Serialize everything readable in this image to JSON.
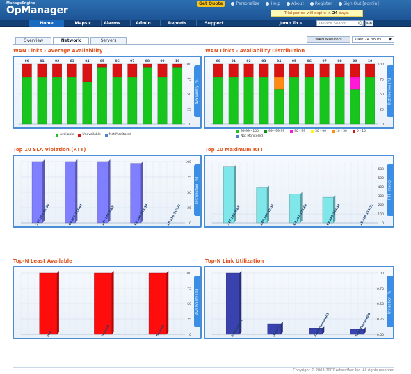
{
  "header": {
    "vendor": "ManageEngine",
    "product": "OpManager",
    "get_quote": "Get Quote",
    "links": [
      "Personalize",
      "Help",
      "About",
      "Register",
      "Sign Out [admin]"
    ],
    "trial_prefix": "Trial period will expire in",
    "trial_days": "24",
    "trial_suffix": "days."
  },
  "nav": {
    "items": [
      "Home",
      "Maps",
      "Alarms",
      "Admin",
      "Reports",
      "Support"
    ],
    "active": "Home",
    "jump_to": "Jump To",
    "search_placeholder": "Device Search...",
    "go": "Go"
  },
  "tabs": [
    "Overview",
    "Network",
    "Servers"
  ],
  "active_tab": "Network",
  "toolbar": {
    "wan_monitors": "WAN Monitors",
    "time_range": "Last 24 hours"
  },
  "colors": {
    "green": "#17c51d",
    "red": "#d91313",
    "orange": "#ff8b12",
    "magenta": "#ff18d6",
    "yellow": "#fff020",
    "purple": "#7f7fff",
    "cyan": "#7fe6ea",
    "navy": "#3a42b0",
    "blue_link": "#4a7fd4",
    "title": "#e05420"
  },
  "panels": {
    "wan_avg": {
      "title": "WAN Links - Average Availability",
      "axis_label": "Availability (%)",
      "legend": [
        "Available",
        "Unavailable",
        "Not Monitored"
      ]
    },
    "wan_dist": {
      "title": "WAN Links - Availability Distribution",
      "axis_label": "Distribution (%)",
      "legend": [
        "99.99 - 100",
        "99 - 99.99",
        "90 - 99",
        "50 - 90",
        "10 - 50",
        "0 - 10",
        "Not Monitored"
      ]
    },
    "sla": {
      "title": "Top 10 SLA Violation (RTT)",
      "axis_label": "Distribution (%)"
    },
    "max_rtt": {
      "title": "Top 10 Maximum RTT",
      "axis_label": "RTT (msec)"
    },
    "least_avail": {
      "title": "Top-N Least Available",
      "axis_label": "Availability (%)"
    },
    "link_util": {
      "title": "Top-N Link Utilization",
      "axis_label": "Utilization (%)"
    }
  },
  "chart_data": [
    {
      "id": "wan_avg",
      "type": "bar",
      "stacked": true,
      "categories": [
        "00",
        "01",
        "02",
        "03",
        "04",
        "05",
        "06",
        "07",
        "08",
        "09",
        "10"
      ],
      "series": [
        {
          "name": "Available",
          "color": "#17c51d",
          "values": [
            78,
            78,
            78,
            78,
            70,
            95,
            78,
            78,
            95,
            78,
            95
          ]
        },
        {
          "name": "Unavailable",
          "color": "#d91313",
          "values": [
            22,
            22,
            22,
            22,
            30,
            5,
            22,
            22,
            5,
            22,
            5
          ]
        }
      ],
      "yticks": [
        0,
        25,
        50,
        75,
        100
      ],
      "ylim": [
        0,
        100
      ]
    },
    {
      "id": "wan_dist",
      "type": "bar",
      "stacked": true,
      "categories": [
        "00",
        "01",
        "02",
        "03",
        "04",
        "05",
        "06",
        "07",
        "08",
        "09",
        "10"
      ],
      "series": [
        {
          "name": "99.99 - 100",
          "color": "#17c51d",
          "values": [
            78,
            78,
            78,
            78,
            58,
            78,
            78,
            78,
            78,
            58,
            78
          ]
        },
        {
          "name": "90 - 99",
          "color": "#ff18d6",
          "values": [
            0,
            0,
            0,
            0,
            0,
            0,
            0,
            0,
            0,
            20,
            0
          ]
        },
        {
          "name": "10 - 50",
          "color": "#ff8b12",
          "values": [
            0,
            0,
            0,
            0,
            20,
            0,
            0,
            0,
            0,
            0,
            0
          ]
        },
        {
          "name": "0 - 10",
          "color": "#d91313",
          "values": [
            22,
            22,
            22,
            22,
            22,
            22,
            22,
            22,
            22,
            22,
            22
          ]
        }
      ],
      "yticks": [
        0,
        25,
        50,
        75,
        100
      ],
      "ylim": [
        0,
        100
      ]
    },
    {
      "id": "sla",
      "type": "bar",
      "categories": [
        "147.156.82.36",
        "64.207.128.68",
        "147.243.3.83",
        "63.245.209.50",
        "15.216.110.21"
      ],
      "values": [
        100,
        100,
        100,
        97,
        0
      ],
      "color": "#7f7fff",
      "yticks": [
        0,
        25,
        50,
        75,
        100
      ],
      "ylim": [
        0,
        100
      ]
    },
    {
      "id": "max_rtt",
      "type": "bar",
      "categories": [
        "147.243.3.83",
        "147.156.82.36",
        "64.207.128.68",
        "63.245.209.50",
        "15.216.110.21"
      ],
      "values": [
        620,
        390,
        320,
        285,
        0
      ],
      "color": "#7fe6ea",
      "yticks": [
        0,
        100,
        200,
        300,
        400,
        500,
        600
      ],
      "ylim": [
        0,
        680
      ]
    },
    {
      "id": "least_avail",
      "type": "bar",
      "categories": [
        "rem",
        "Tunnel0",
        "Tunnel1"
      ],
      "values": [
        100,
        100,
        100
      ],
      "color": "#ff0c0c",
      "yticks": [
        0,
        25,
        50,
        75,
        100
      ],
      "ylim": [
        0,
        100
      ]
    },
    {
      "id": "link_util",
      "type": "bar",
      "categories": [
        "Ethernet0/1",
        "Dialer1",
        "FastEthernet0/1",
        "FastEthernet0/0"
      ],
      "values": [
        1.0,
        0.17,
        0.1,
        0.08
      ],
      "color": "#3a42b0",
      "yticks": [
        0.0,
        0.25,
        0.5,
        0.75,
        1.0
      ],
      "yformat": 2,
      "ylim": [
        0,
        1.0
      ]
    }
  ],
  "footer": "Copyright © 2003-2007 AdventNet Inc. All rights reserved"
}
